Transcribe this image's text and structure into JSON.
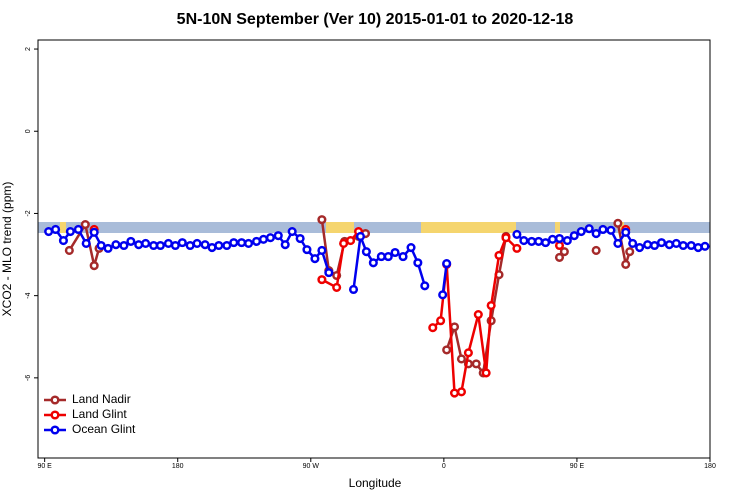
{
  "chart_data": {
    "type": "line",
    "title": "5N-10N September (Ver 10)   2015-01-01 to 2020-12-18",
    "x_label": "Longitude",
    "y_label": "XCO2 - MLO trend (ppm)",
    "xlim": [
      85.5,
      540
    ],
    "ylim": [
      -7.95,
      2.22
    ],
    "xticks": [
      {
        "value": 90,
        "label": "90 E"
      },
      180,
      {
        "value": 270,
        "label": "90 W"
      },
      {
        "value": 360,
        "label": "0"
      },
      {
        "value": 450,
        "label": "90 E"
      },
      {
        "value": 540,
        "label": "180"
      }
    ],
    "yticks": [
      2,
      0,
      -2,
      -4,
      -6
    ],
    "legend": "bottom-left",
    "series": [
      {
        "name": "Land Nadir",
        "color": "#a52a2a",
        "x": [
          106.7,
          117.5,
          123.5,
          126.8,
          null,
          277.5,
          282.2,
          287.5,
          292.9,
          302.3,
          307.0,
          null,
          361.9,
          367.2,
          371.9,
          376.6,
          381.9,
          386.6,
          392.0,
          397.3,
          402.0,
          null,
          438.2,
          441.5,
          null,
          463.0,
          null,
          477.7,
          483.0,
          485.7
        ],
        "values": [
          -2.9,
          -2.27,
          -3.27,
          -2.85,
          null,
          -2.15,
          -3.39,
          -3.51,
          -2.68,
          -2.56,
          -2.49,
          null,
          -5.32,
          -4.76,
          -5.54,
          -5.66,
          -5.66,
          -5.88,
          -4.61,
          -3.49,
          -2.56,
          null,
          -3.07,
          -2.93,
          null,
          -2.9,
          null,
          -2.24,
          -3.24,
          -2.93
        ]
      },
      {
        "name": "Land Glint",
        "color": "#ee0000",
        "x": [
          123.5,
          null,
          277.5,
          287.5,
          292.2,
          296.9,
          302.3,
          null,
          352.5,
          357.8,
          361.9,
          367.2,
          371.9,
          376.6,
          383.3,
          388.6,
          392.0,
          397.3,
          402.0,
          409.4,
          null,
          438.2,
          null,
          483.0
        ],
        "values": [
          -2.39,
          null,
          -3.61,
          -3.8,
          -2.73,
          -2.66,
          -2.44,
          null,
          -4.78,
          -4.61,
          -3.24,
          -6.37,
          -6.34,
          -5.39,
          -4.46,
          -5.88,
          -4.24,
          -3.02,
          -2.59,
          -2.85,
          null,
          -2.78,
          null,
          -2.39
        ]
      },
      {
        "name": "Ocean Glint",
        "color": "#0000ee",
        "x": [
          92.7,
          97.4,
          102.7,
          107.4,
          112.8,
          118.1,
          123.5,
          128.2,
          132.9,
          138.2,
          143.6,
          148.3,
          153.6,
          158.3,
          163.7,
          168.3,
          173.7,
          178.4,
          183.1,
          188.4,
          193.1,
          198.5,
          203.2,
          207.8,
          213.2,
          217.9,
          223.2,
          227.9,
          233.3,
          238.0,
          242.7,
          248.0,
          252.7,
          257.4,
          262.8,
          267.4,
          272.8,
          277.5,
          282.2,
          null,
          298.9,
          303.6,
          307.6,
          312.3,
          317.7,
          322.4,
          327.0,
          332.4,
          337.8,
          342.4,
          347.1,
          null,
          359.2,
          361.9,
          null,
          409.4,
          414.1,
          419.4,
          424.1,
          428.8,
          433.5,
          438.2,
          443.5,
          448.2,
          452.9,
          458.3,
          463.0,
          467.6,
          473.0,
          477.7,
          483.0,
          487.7,
          492.4,
          497.8,
          502.5,
          507.2,
          512.5,
          517.2,
          521.9,
          527.3,
          532.0,
          536.6
        ],
        "values": [
          -2.44,
          -2.39,
          -2.66,
          -2.44,
          -2.39,
          -2.73,
          -2.46,
          -2.78,
          -2.85,
          -2.76,
          -2.78,
          -2.68,
          -2.76,
          -2.73,
          -2.78,
          -2.78,
          -2.73,
          -2.78,
          -2.71,
          -2.78,
          -2.73,
          -2.76,
          -2.83,
          -2.78,
          -2.78,
          -2.71,
          -2.71,
          -2.73,
          -2.68,
          -2.63,
          -2.59,
          -2.54,
          -2.76,
          -2.44,
          -2.61,
          -2.88,
          -3.1,
          -2.9,
          -3.44,
          null,
          -3.85,
          -2.56,
          -2.93,
          -3.2,
          -3.05,
          -3.05,
          -2.95,
          -3.05,
          -2.83,
          -3.2,
          -3.76,
          null,
          -3.98,
          -3.22,
          null,
          -2.51,
          -2.66,
          -2.68,
          -2.68,
          -2.71,
          -2.63,
          -2.61,
          -2.66,
          -2.54,
          -2.44,
          -2.37,
          -2.49,
          -2.39,
          -2.41,
          -2.73,
          -2.46,
          -2.73,
          -2.83,
          -2.76,
          -2.78,
          -2.71,
          -2.76,
          -2.73,
          -2.78,
          -2.78,
          -2.83,
          -2.8
        ]
      }
    ]
  }
}
